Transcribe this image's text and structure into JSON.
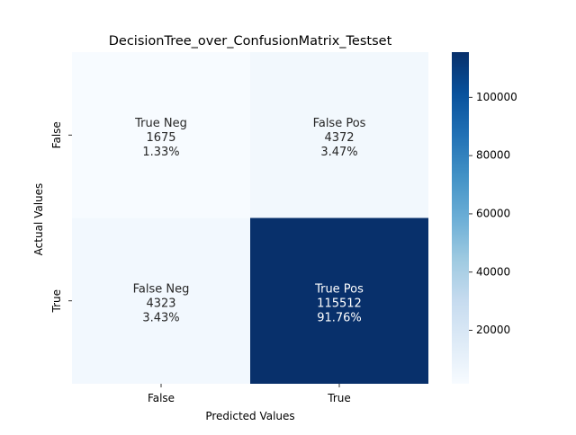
{
  "chart_data": {
    "type": "heatmap",
    "title": "DecisionTree_over_ConfusionMatrix_Testset",
    "xlabel": "Predicted Values",
    "ylabel": "Actual Values",
    "x_categories": [
      "False",
      "True"
    ],
    "y_categories": [
      "False",
      "True"
    ],
    "cells": [
      [
        {
          "label": "True Neg",
          "count": 1675,
          "count_text": "1675",
          "percent": "1.33%"
        },
        {
          "label": "False Pos",
          "count": 4372,
          "count_text": "4372",
          "percent": "3.47%"
        }
      ],
      [
        {
          "label": "False Neg",
          "count": 4323,
          "count_text": "4323",
          "percent": "3.43%"
        },
        {
          "label": "True Pos",
          "count": 115512,
          "count_text": "115512",
          "percent": "91.76%"
        }
      ]
    ],
    "colorbar": {
      "colormap": "Blues",
      "vmin": 1675,
      "vmax": 115512,
      "ticks": [
        20000,
        40000,
        60000,
        80000,
        100000
      ],
      "tick_labels": [
        "20000",
        "40000",
        "60000",
        "80000",
        "100000"
      ]
    }
  }
}
